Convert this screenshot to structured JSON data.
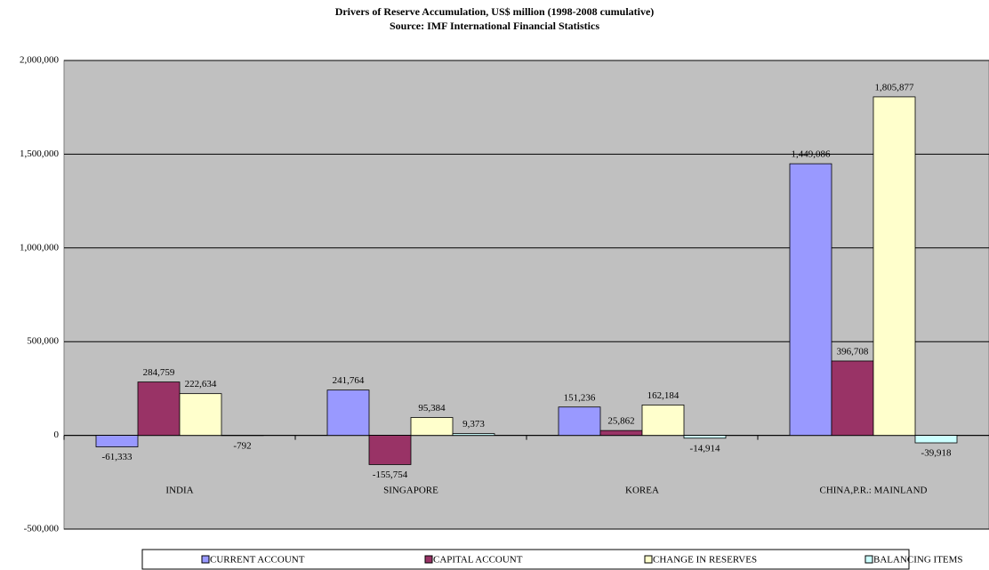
{
  "chart_data": {
    "type": "bar",
    "title": "Drivers of Reserve Accumulation, US$ million  (1998-2008 cumulative)",
    "subtitle": "Source: IMF International Financial Statistics",
    "categories": [
      "INDIA",
      "SINGAPORE",
      "KOREA",
      "CHINA,P.R.: MAINLAND"
    ],
    "series": [
      {
        "name": "CURRENT ACCOUNT",
        "color": "#9999ff",
        "values": [
          -61333,
          241764,
          151236,
          1449086
        ],
        "value_labels": [
          "-61,333",
          "241,764",
          "151,236",
          "1,449,086"
        ]
      },
      {
        "name": "CAPITAL ACCOUNT",
        "color": "#993366",
        "values": [
          284759,
          -155754,
          25862,
          396708
        ],
        "value_labels": [
          "284,759",
          "-155,754",
          "25,862",
          "396,708"
        ]
      },
      {
        "name": "CHANGE IN RESERVES",
        "color": "#ffffcc",
        "values": [
          222634,
          95384,
          162184,
          1805877
        ],
        "value_labels": [
          "222,634",
          "95,384",
          "162,184",
          "1,805,877"
        ]
      },
      {
        "name": "BALANCING ITEMS",
        "color": "#ccffff",
        "values": [
          -792,
          9373,
          -14914,
          -39918
        ],
        "value_labels": [
          "-792",
          "9,373",
          "-14,914",
          "-39,918"
        ]
      }
    ],
    "ylim": [
      -500000,
      2000000
    ],
    "yticks": [
      {
        "value": -500000,
        "label": "-500,000"
      },
      0,
      {
        "value": 500000,
        "label": "500,000"
      },
      {
        "value": 1000000,
        "label": "1,000,000"
      },
      {
        "value": 1500000,
        "label": "1,500,000"
      },
      {
        "value": 2000000,
        "label": "2,000,000"
      }
    ],
    "grid": true,
    "legend": "bottom",
    "background": "#c0c0c0"
  }
}
